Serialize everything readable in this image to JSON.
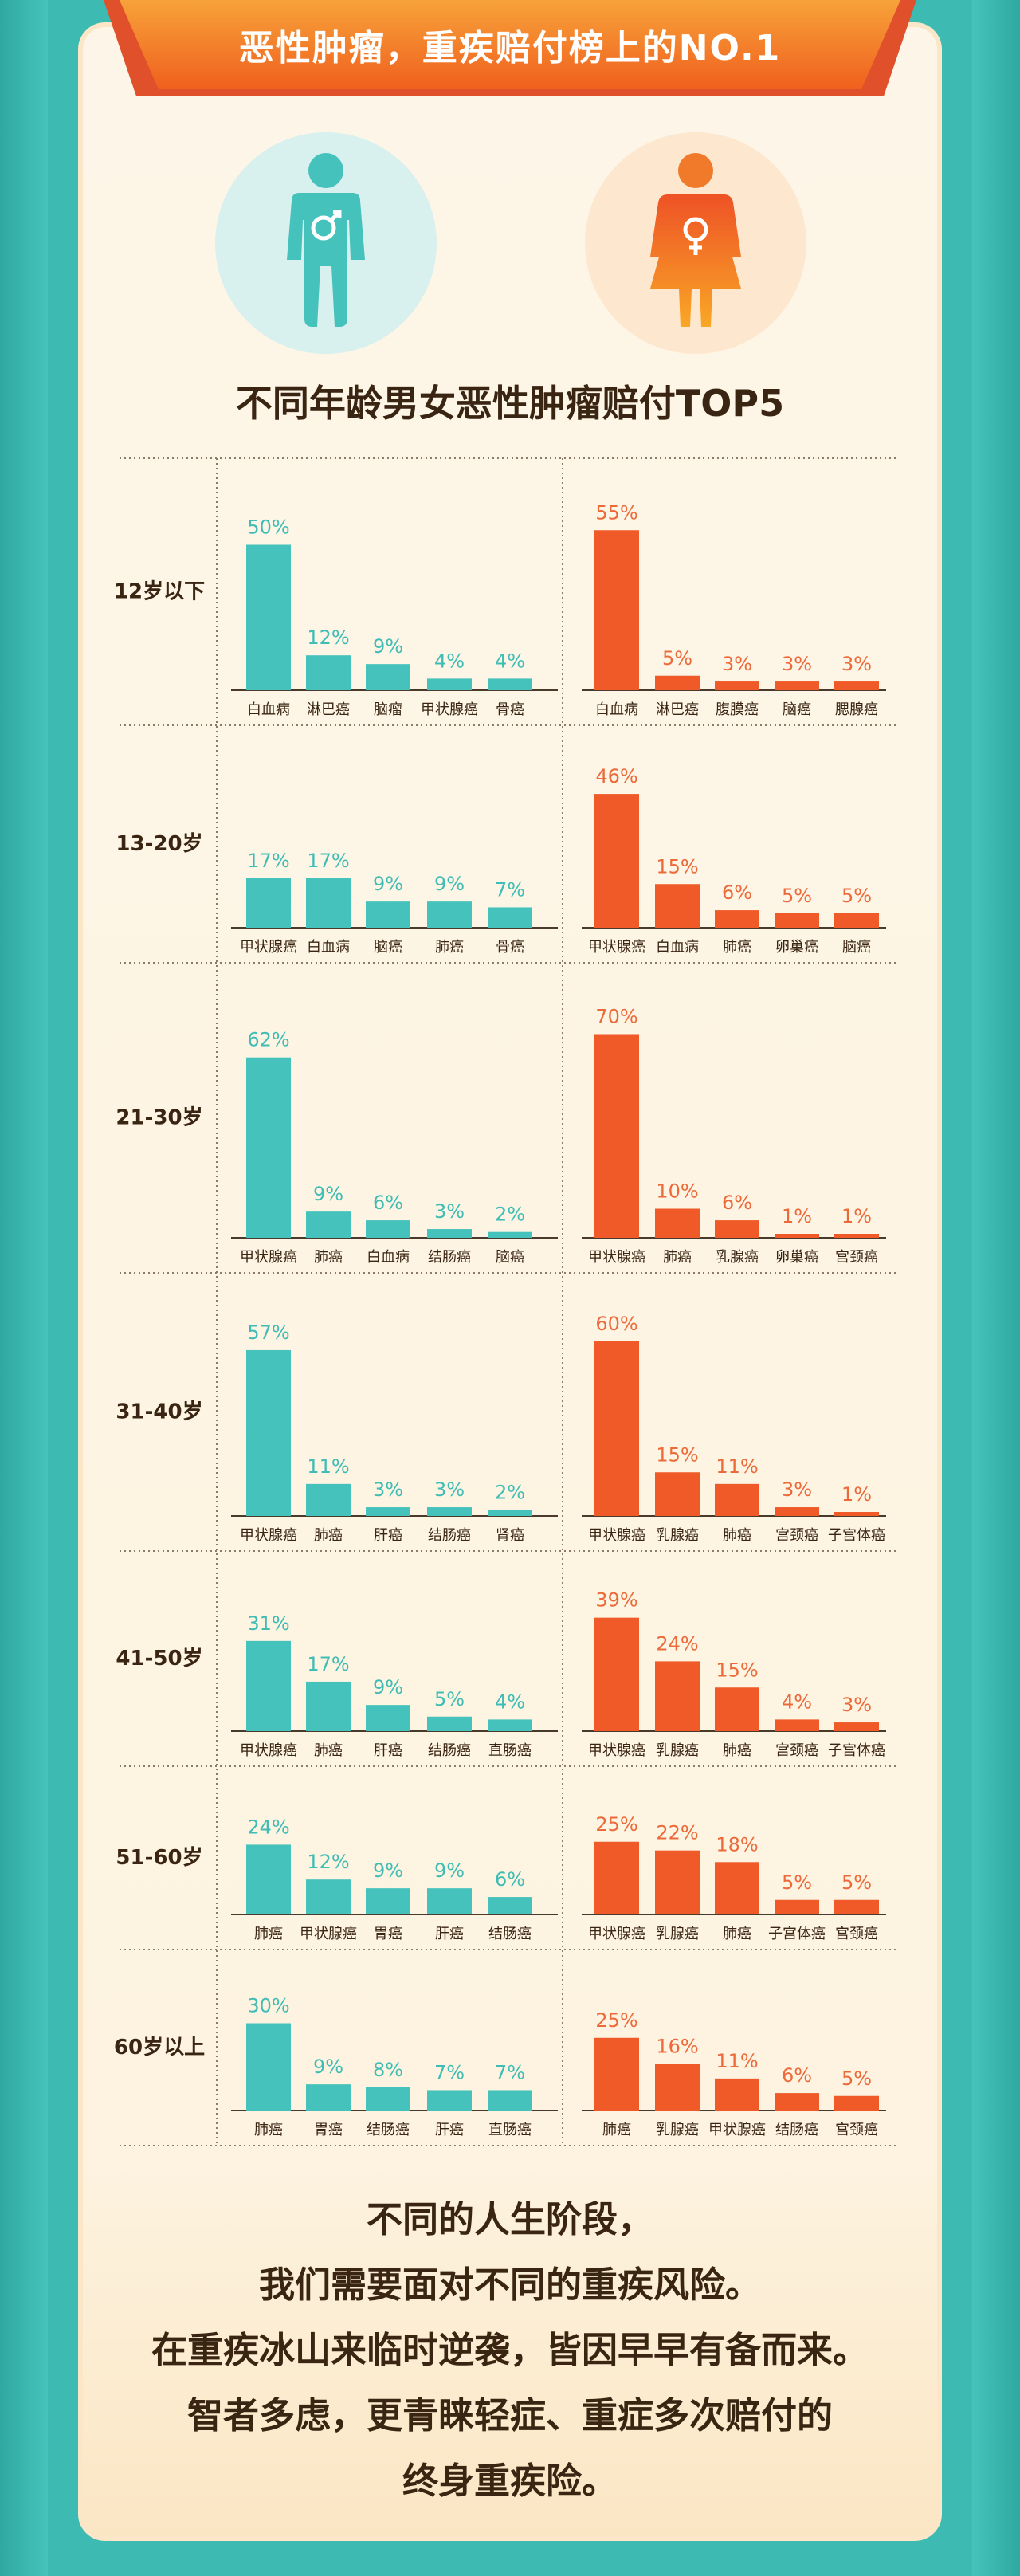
{
  "header": {
    "title": "恶性肿瘤，重疾赔付榜上的NO.1"
  },
  "icons": {
    "male": "male-figure-icon",
    "female": "female-figure-icon"
  },
  "colors": {
    "male": "#45c2bb",
    "female": "#ef5a28",
    "label_male": "#3fbdb5",
    "label_female": "#ec6a3a",
    "text": "#3a2512"
  },
  "subtitle": "不同年龄男女恶性肿瘤赔付TOP5",
  "chart_data": {
    "type": "bar",
    "title": "不同年龄男女恶性肿瘤赔付TOP5",
    "groups": [
      {
        "age": "12岁以下",
        "male": {
          "categories": [
            "白血病",
            "淋巴癌",
            "脑瘤",
            "甲状腺癌",
            "骨癌"
          ],
          "values": [
            50,
            12,
            9,
            4,
            4
          ]
        },
        "female": {
          "categories": [
            "白血病",
            "淋巴癌",
            "腹膜癌",
            "脑癌",
            "腮腺癌"
          ],
          "values": [
            55,
            5,
            3,
            3,
            3
          ]
        }
      },
      {
        "age": "13-20岁",
        "male": {
          "categories": [
            "甲状腺癌",
            "白血病",
            "脑癌",
            "肺癌",
            "骨癌"
          ],
          "values": [
            17,
            17,
            9,
            9,
            7
          ]
        },
        "female": {
          "categories": [
            "甲状腺癌",
            "白血病",
            "肺癌",
            "卵巢癌",
            "脑癌"
          ],
          "values": [
            46,
            15,
            6,
            5,
            5
          ]
        }
      },
      {
        "age": "21-30岁",
        "male": {
          "categories": [
            "甲状腺癌",
            "肺癌",
            "白血病",
            "结肠癌",
            "脑癌"
          ],
          "values": [
            62,
            9,
            6,
            3,
            2
          ]
        },
        "female": {
          "categories": [
            "甲状腺癌",
            "肺癌",
            "乳腺癌",
            "卵巢癌",
            "宫颈癌"
          ],
          "values": [
            70,
            10,
            6,
            1,
            1
          ]
        }
      },
      {
        "age": "31-40岁",
        "male": {
          "categories": [
            "甲状腺癌",
            "肺癌",
            "肝癌",
            "结肠癌",
            "肾癌"
          ],
          "values": [
            57,
            11,
            3,
            3,
            2
          ]
        },
        "female": {
          "categories": [
            "甲状腺癌",
            "乳腺癌",
            "肺癌",
            "宫颈癌",
            "子宫体癌"
          ],
          "values": [
            60,
            15,
            11,
            3,
            1
          ]
        }
      },
      {
        "age": "41-50岁",
        "male": {
          "categories": [
            "甲状腺癌",
            "肺癌",
            "肝癌",
            "结肠癌",
            "直肠癌"
          ],
          "values": [
            31,
            17,
            9,
            5,
            4
          ]
        },
        "female": {
          "categories": [
            "甲状腺癌",
            "乳腺癌",
            "肺癌",
            "宫颈癌",
            "子宫体癌"
          ],
          "values": [
            39,
            24,
            15,
            4,
            3
          ]
        }
      },
      {
        "age": "51-60岁",
        "male": {
          "categories": [
            "肺癌",
            "甲状腺癌",
            "胃癌",
            "肝癌",
            "结肠癌"
          ],
          "values": [
            24,
            12,
            9,
            9,
            6
          ]
        },
        "female": {
          "categories": [
            "甲状腺癌",
            "乳腺癌",
            "肺癌",
            "子宫体癌",
            "宫颈癌"
          ],
          "values": [
            25,
            22,
            18,
            5,
            5
          ]
        }
      },
      {
        "age": "60岁以上",
        "male": {
          "categories": [
            "肺癌",
            "胃癌",
            "结肠癌",
            "肝癌",
            "直肠癌"
          ],
          "values": [
            30,
            9,
            8,
            7,
            7
          ]
        },
        "female": {
          "categories": [
            "肺癌",
            "乳腺癌",
            "甲状腺癌",
            "结肠癌",
            "宫颈癌"
          ],
          "values": [
            25,
            16,
            11,
            6,
            5
          ]
        }
      }
    ]
  },
  "closing": {
    "lines": [
      "不同的人生阶段，",
      "我们需要面对不同的重疾风险。",
      "在重疾冰山来临时逆袭，皆因早早有备而来。",
      "智者多虑，更青睐轻症、重症多次赔付的",
      "终身重疾险。"
    ]
  }
}
